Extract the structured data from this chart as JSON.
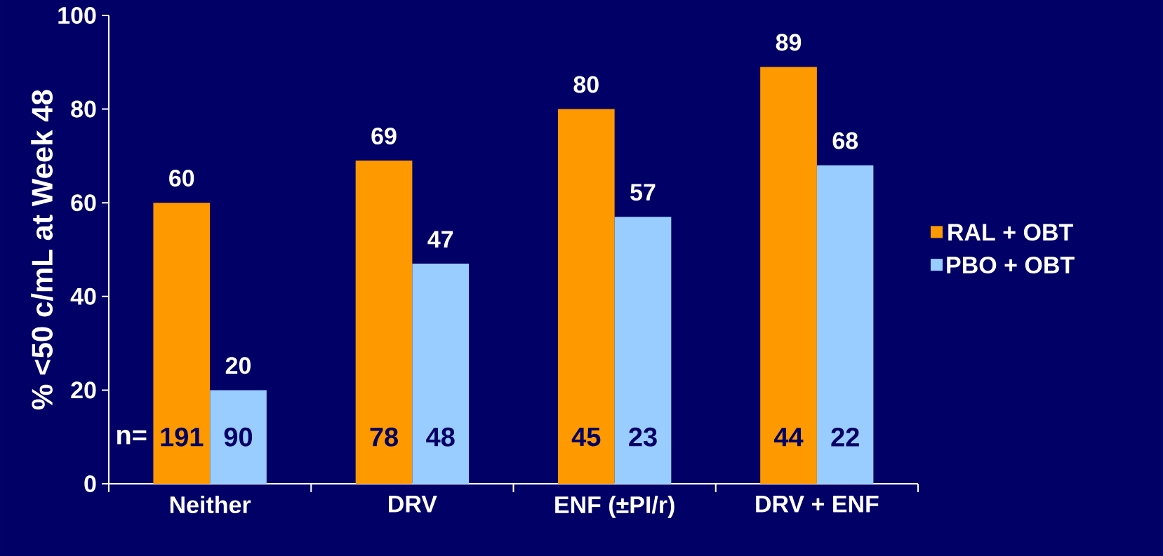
{
  "chart_data": {
    "type": "bar",
    "ylabel": "%  <50 c/mL at Week 48",
    "categories": [
      "Neither",
      "DRV",
      "ENF (±PI/r)",
      "DRV + ENF"
    ],
    "series": [
      {
        "name": "RAL + OBT",
        "color": "#ff9900",
        "values": [
          60,
          69,
          80,
          89
        ]
      },
      {
        "name": "PBO + OBT",
        "color": "#99ccff",
        "values": [
          20,
          47,
          57,
          68
        ]
      }
    ],
    "ylim": [
      0,
      100
    ],
    "yticks": [
      0,
      20,
      40,
      60,
      80,
      100
    ],
    "data_labels": true,
    "legend": "right",
    "grid": false,
    "annotations": [
      "n=",
      "191",
      "90",
      "78",
      "48",
      "45",
      "23",
      "44",
      "22"
    ]
  }
}
